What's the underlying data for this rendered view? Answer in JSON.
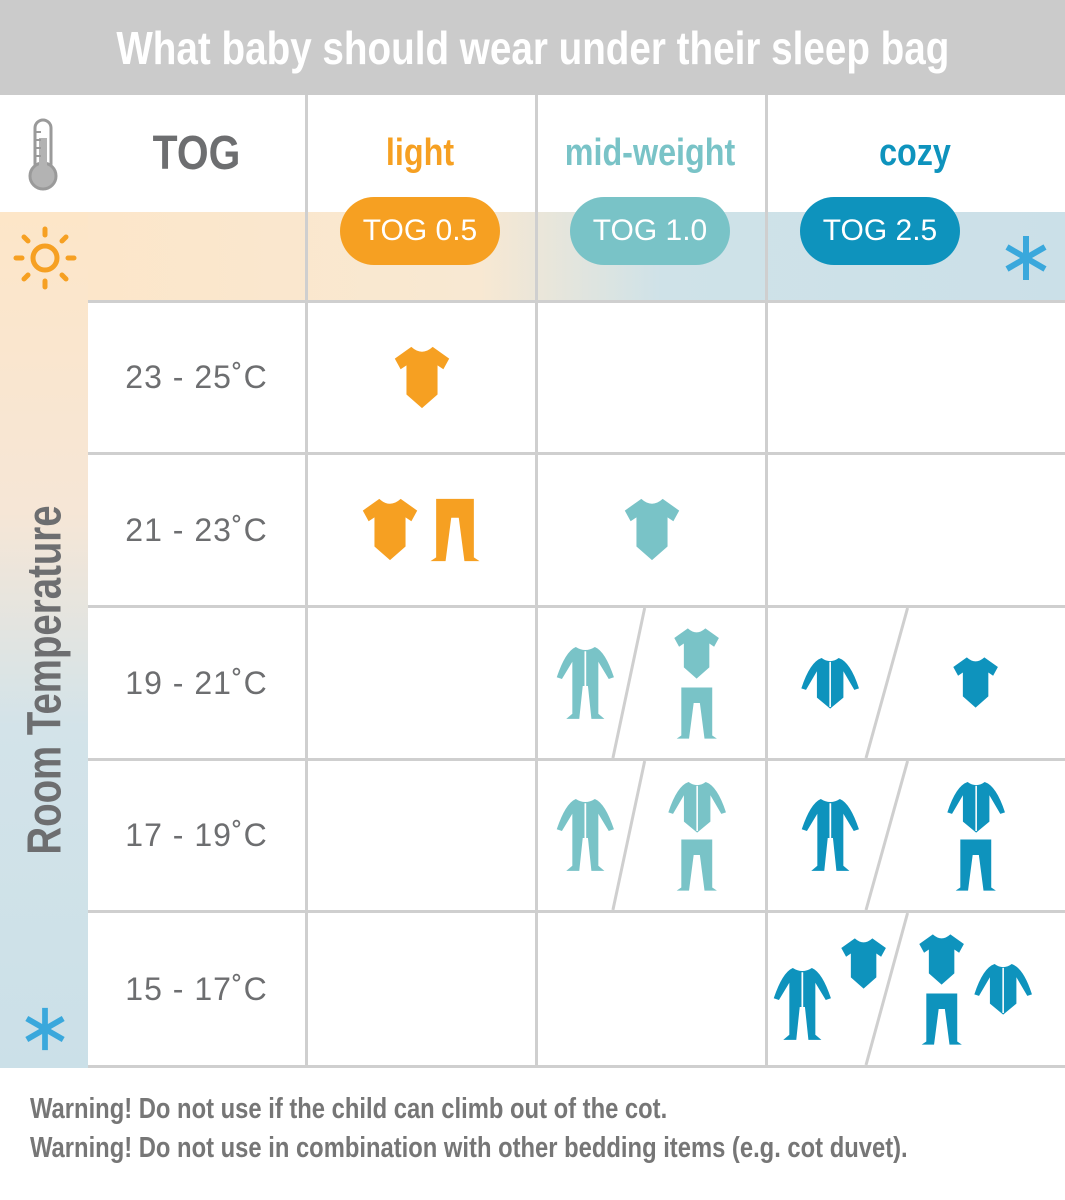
{
  "title": "What baby should wear under their sleep bag",
  "header": {
    "tog_label": "TOG",
    "columns": [
      {
        "name": "light",
        "tog": "TOG 0.5",
        "color": "#f6a022"
      },
      {
        "name": "mid-weight",
        "tog": "TOG 1.0",
        "color": "#79c3c7"
      },
      {
        "name": "cozy",
        "tog": "TOG 2.5",
        "color": "#0e93bd"
      }
    ]
  },
  "axis_label": "Room Temperature",
  "icons": {
    "thermometer": "thermometer-icon",
    "warm": "sun-icon",
    "cold": "snowflake-icon"
  },
  "colors": {
    "sun": "#f6a022",
    "snow": "#3aa8dc",
    "grid": "#cfcfcf",
    "text": "#6d6e70"
  },
  "rows": [
    {
      "temp": "23 - 25˚C",
      "cells": [
        [
          [
            "bodysuit"
          ]
        ],
        [],
        []
      ]
    },
    {
      "temp": "21 - 23˚C",
      "cells": [
        [
          [
            "bodysuit",
            "pants"
          ]
        ],
        [
          [
            "bodysuit"
          ]
        ],
        []
      ]
    },
    {
      "temp": "19 - 21˚C",
      "cells": [
        [],
        [
          [
            "sleepsuit"
          ],
          [
            "bodysuit",
            "pants"
          ]
        ],
        [
          [
            "long-sleeve-bodysuit"
          ],
          [
            "bodysuit"
          ]
        ]
      ]
    },
    {
      "temp": "17 - 19˚C",
      "cells": [
        [],
        [
          [
            "sleepsuit"
          ],
          [
            "long-sleeve-bodysuit",
            "pants"
          ]
        ],
        [
          [
            "sleepsuit"
          ],
          [
            "long-sleeve-bodysuit",
            "pants"
          ]
        ]
      ]
    },
    {
      "temp": "15 - 17˚C",
      "cells": [
        [],
        [],
        [
          [
            "sleepsuit",
            "bodysuit"
          ],
          [
            "bodysuit",
            "pants",
            "long-sleeve-bodysuit"
          ]
        ]
      ]
    }
  ],
  "warnings": [
    "Warning! Do not use if the child can climb out of the cot.",
    "Warning! Do not use in combination with other bedding items (e.g. cot duvet)."
  ]
}
